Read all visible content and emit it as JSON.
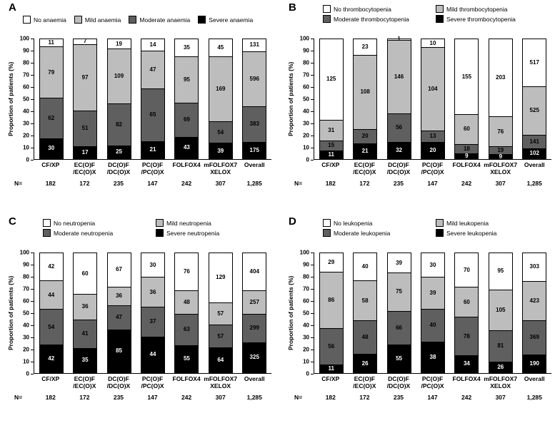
{
  "figure": {
    "panels": [
      "A",
      "B",
      "C",
      "D"
    ],
    "colors": {
      "none": "#ffffff",
      "mild": "#bdbdbd",
      "moderate": "#5f5f5f",
      "severe": "#000000"
    }
  },
  "chart_data": [
    {
      "type": "bar",
      "stacked": true,
      "panel_label": "A",
      "legend_layout": "row",
      "legend_position": "top",
      "ylabel": "Proportion of patients (%)",
      "ylim": [
        0,
        100
      ],
      "yticks": [
        0,
        10,
        20,
        30,
        40,
        50,
        60,
        70,
        80,
        90,
        100
      ],
      "categories": [
        [
          "CF/XP"
        ],
        [
          "EC(O)F",
          "/EC(O)X"
        ],
        [
          "DC(O)F",
          "/DC(O)X"
        ],
        [
          "PC(O)F",
          "/PC(O)X"
        ],
        [
          "FOLFOX4"
        ],
        [
          "mFOLFOX7",
          "XELOX"
        ],
        [
          "Overall"
        ]
      ],
      "n_label": "N=",
      "n_values": [
        "182",
        "172",
        "235",
        "147",
        "242",
        "307",
        "1,285"
      ],
      "series": [
        {
          "name": "No anaemia",
          "color": "#ffffff",
          "label_color": "#000000",
          "values": [
            11,
            7,
            19,
            14,
            35,
            45,
            131
          ]
        },
        {
          "name": "Mild anaemia",
          "color": "#bdbdbd",
          "label_color": "#000000",
          "values": [
            79,
            97,
            109,
            47,
            95,
            169,
            596
          ]
        },
        {
          "name": "Moderate anaemia",
          "color": "#5f5f5f",
          "label_color": "#000000",
          "values": [
            62,
            51,
            82,
            65,
            69,
            54,
            383
          ]
        },
        {
          "name": "Severe anaemia",
          "color": "#000000",
          "label_color": "#ffffff",
          "values": [
            30,
            17,
            25,
            21,
            43,
            39,
            175
          ]
        }
      ]
    },
    {
      "type": "bar",
      "stacked": true,
      "panel_label": "B",
      "legend_layout": "grid",
      "legend_position": "top",
      "ylabel": "Proportion of patients (%)",
      "ylim": [
        0,
        100
      ],
      "yticks": [
        0,
        10,
        20,
        30,
        40,
        50,
        60,
        70,
        80,
        90,
        100
      ],
      "categories": [
        [
          "CF/XP"
        ],
        [
          "EC(O)F",
          "/EC(O)X"
        ],
        [
          "DC(O)F",
          "/DC(O)X"
        ],
        [
          "PC(O)F",
          "/PC(O)X"
        ],
        [
          "FOLFOX4"
        ],
        [
          "mFOLFOX7",
          "XELOX"
        ],
        [
          "Overall"
        ]
      ],
      "n_label": "N=",
      "n_values": [
        "182",
        "172",
        "235",
        "147",
        "242",
        "307",
        "1,285"
      ],
      "series": [
        {
          "name": "No thrombocytopenia",
          "color": "#ffffff",
          "label_color": "#000000",
          "values": [
            125,
            23,
            1,
            10,
            155,
            203,
            517
          ]
        },
        {
          "name": "Mild thrombocytopenia",
          "color": "#bdbdbd",
          "label_color": "#000000",
          "values": [
            31,
            108,
            146,
            104,
            60,
            76,
            525
          ]
        },
        {
          "name": "Moderate thrombocytopenia",
          "color": "#5f5f5f",
          "label_color": "#000000",
          "values": [
            15,
            20,
            56,
            13,
            18,
            19,
            141
          ]
        },
        {
          "name": "Severe thrombocytopenia",
          "color": "#000000",
          "label_color": "#ffffff",
          "values": [
            11,
            21,
            32,
            20,
            9,
            9,
            102
          ]
        }
      ]
    },
    {
      "type": "bar",
      "stacked": true,
      "panel_label": "C",
      "legend_layout": "grid",
      "legend_position": "top",
      "ylabel": "Proportion of patients (%)",
      "ylim": [
        0,
        100
      ],
      "yticks": [
        0,
        10,
        20,
        30,
        40,
        50,
        60,
        70,
        80,
        90,
        100
      ],
      "categories": [
        [
          "CF/XP"
        ],
        [
          "EC(O)F",
          "/EC(O)X"
        ],
        [
          "DC(O)F",
          "/DC(O)X"
        ],
        [
          "PC(O)F",
          "/PC(O)X"
        ],
        [
          "FOLFOX4"
        ],
        [
          "mFOLFOX7",
          "XELOX"
        ],
        [
          "Overall"
        ]
      ],
      "n_label": "N=",
      "n_values": [
        "182",
        "172",
        "235",
        "147",
        "242",
        "307",
        "1,285"
      ],
      "series": [
        {
          "name": "No neutropenia",
          "color": "#ffffff",
          "label_color": "#000000",
          "values": [
            42,
            60,
            67,
            30,
            76,
            129,
            404
          ]
        },
        {
          "name": "Mild neutropenia",
          "color": "#bdbdbd",
          "label_color": "#000000",
          "values": [
            44,
            36,
            36,
            36,
            48,
            57,
            257
          ]
        },
        {
          "name": "Moderate neutropenia",
          "color": "#5f5f5f",
          "label_color": "#000000",
          "values": [
            54,
            41,
            47,
            37,
            63,
            57,
            299
          ]
        },
        {
          "name": "Severe neutropenia",
          "color": "#000000",
          "label_color": "#ffffff",
          "values": [
            42,
            35,
            85,
            44,
            55,
            64,
            325
          ]
        }
      ]
    },
    {
      "type": "bar",
      "stacked": true,
      "panel_label": "D",
      "legend_layout": "grid",
      "legend_position": "top",
      "ylabel": "Proportion of patients (%)",
      "ylim": [
        0,
        100
      ],
      "yticks": [
        0,
        10,
        20,
        30,
        40,
        50,
        60,
        70,
        80,
        90,
        100
      ],
      "categories": [
        [
          "CF/XP"
        ],
        [
          "EC(O)F",
          "/EC(O)X"
        ],
        [
          "DC(O)F",
          "/DC(O)X"
        ],
        [
          "PC(O)F",
          "/PC(O)X"
        ],
        [
          "FOLFOX4"
        ],
        [
          "mFOLFOX7",
          "XELOX"
        ],
        [
          "Overall"
        ]
      ],
      "n_label": "N=",
      "n_values": [
        "182",
        "172",
        "235",
        "147",
        "242",
        "307",
        "1,285"
      ],
      "series": [
        {
          "name": "No leukopenia",
          "color": "#ffffff",
          "label_color": "#000000",
          "values": [
            29,
            40,
            39,
            30,
            70,
            95,
            303
          ]
        },
        {
          "name": "Mild leukopenia",
          "color": "#bdbdbd",
          "label_color": "#000000",
          "values": [
            86,
            58,
            75,
            39,
            60,
            105,
            423
          ]
        },
        {
          "name": "Moderate leukopenia",
          "color": "#5f5f5f",
          "label_color": "#000000",
          "values": [
            56,
            48,
            66,
            40,
            78,
            81,
            369
          ]
        },
        {
          "name": "Severe leukopenia",
          "color": "#000000",
          "label_color": "#ffffff",
          "values": [
            11,
            26,
            55,
            38,
            34,
            26,
            190
          ]
        }
      ]
    }
  ]
}
